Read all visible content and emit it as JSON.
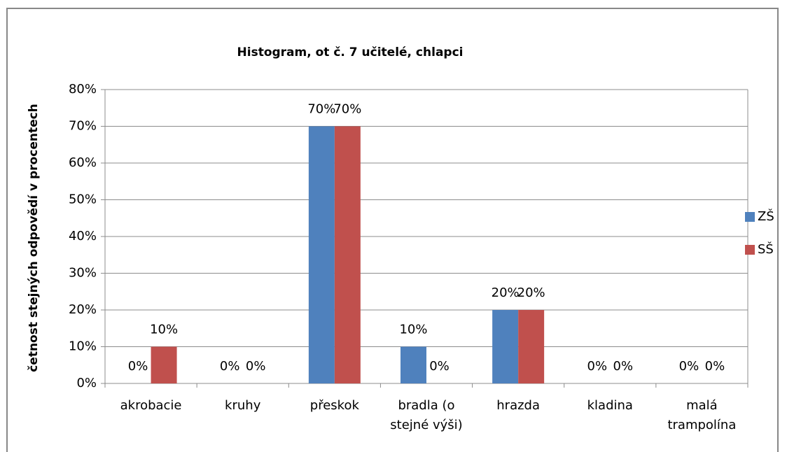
{
  "chart_data": {
    "type": "bar",
    "title": "Histogram, ot č. 7 učitelé, chlapci",
    "y_label": "četnost stejných odpovědí v procentech",
    "categories": [
      "akrobacie",
      "kruhy",
      "přeskok",
      "bradla (o stejné výši)",
      "hrazda",
      "kladina",
      "malá trampolína"
    ],
    "series": [
      {
        "name": "ZŠ",
        "color": "#4f81bd",
        "values": [
          0,
          0,
          70,
          10,
          20,
          0,
          0
        ],
        "value_labels": [
          "0%",
          "0%",
          "70%",
          "10%",
          "20%",
          "0%",
          "0%"
        ]
      },
      {
        "name": "SŠ",
        "color": "#c0504d",
        "values": [
          10,
          0,
          70,
          0,
          20,
          0,
          0
        ],
        "value_labels": [
          "10%",
          "0%",
          "70%",
          "0%",
          "20%",
          "0%",
          "0%"
        ]
      }
    ],
    "ylim": [
      0,
      80
    ],
    "yticks": [
      {
        "value": 0,
        "label": "0%"
      },
      {
        "value": 10,
        "label": "10%"
      },
      {
        "value": 20,
        "label": "20%"
      },
      {
        "value": 30,
        "label": "30%"
      },
      {
        "value": 40,
        "label": "40%"
      },
      {
        "value": 50,
        "label": "50%"
      },
      {
        "value": 60,
        "label": "60%"
      },
      {
        "value": 70,
        "label": "70%"
      },
      {
        "value": 80,
        "label": "80%"
      }
    ],
    "grid": true,
    "legend": "right"
  }
}
